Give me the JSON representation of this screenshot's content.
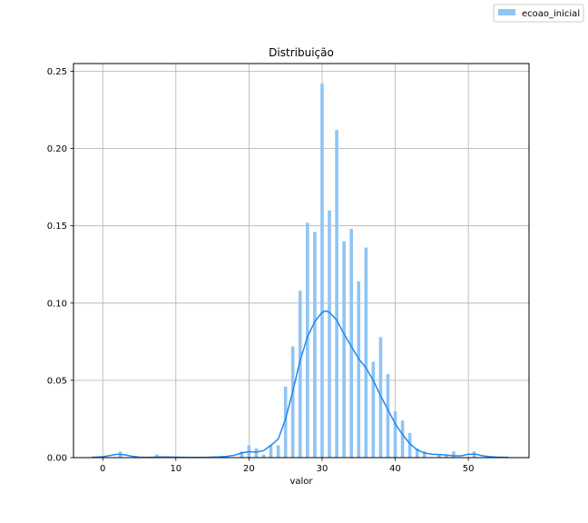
{
  "chart_data": {
    "type": "bar",
    "title": "Distribuição",
    "xlabel": "valor",
    "ylabel": "",
    "xlim": [
      -4,
      58.3
    ],
    "ylim": [
      0,
      0.255
    ],
    "xticks": [
      0,
      10,
      20,
      30,
      40,
      50
    ],
    "yticks": [
      0.0,
      0.05,
      0.1,
      0.15,
      0.2,
      0.25
    ],
    "ytick_labels": [
      "0.00",
      "0.05",
      "0.10",
      "0.15",
      "0.20",
      "0.25"
    ],
    "grid": true,
    "legend": {
      "placement": "top-right-outside",
      "entries": [
        "ecoao_inicial"
      ]
    },
    "bar_color": "#90c4f5",
    "kde_color": "#2188ee",
    "series": [
      {
        "name": "ecoao_inicial",
        "type": "histogram",
        "x": [
          2.4,
          7.4,
          19.0,
          20.0,
          21.0,
          22.0,
          23.0,
          24.0,
          25.0,
          26.0,
          27.0,
          28.0,
          29.0,
          30.0,
          31.0,
          32.0,
          33.0,
          34.0,
          35.0,
          36.0,
          37.0,
          38.0,
          39.0,
          40.0,
          41.0,
          42.0,
          43.0,
          44.0,
          46.0,
          47.0,
          48.0,
          50.8
        ],
        "values": [
          0.004,
          0.002,
          0.004,
          0.008,
          0.006,
          0.002,
          0.008,
          0.008,
          0.046,
          0.072,
          0.108,
          0.152,
          0.146,
          0.242,
          0.16,
          0.212,
          0.14,
          0.148,
          0.114,
          0.136,
          0.062,
          0.078,
          0.054,
          0.03,
          0.024,
          0.016,
          0.006,
          0.004,
          0.002,
          0.002,
          0.004,
          0.004
        ]
      },
      {
        "name": "ecoao_inicial",
        "type": "kde",
        "x": [
          -1.5,
          0,
          1,
          2,
          3,
          4,
          5,
          6,
          8,
          10,
          12,
          14,
          16,
          17,
          18,
          19,
          20,
          21,
          22,
          23,
          24,
          25,
          26,
          27,
          28,
          29,
          30,
          30.5,
          31,
          32,
          33,
          34,
          35,
          36,
          37,
          38,
          39,
          40,
          41,
          42,
          43,
          44,
          45,
          46,
          47,
          48,
          49,
          50,
          51,
          52,
          53,
          54,
          55.5
        ],
        "values": [
          0.0002,
          0.0006,
          0.0014,
          0.0022,
          0.0018,
          0.0009,
          0.0003,
          0.0002,
          0.0004,
          0.0003,
          0.0001,
          0.0002,
          0.0005,
          0.0008,
          0.0015,
          0.003,
          0.0038,
          0.0036,
          0.0045,
          0.008,
          0.012,
          0.025,
          0.043,
          0.063,
          0.078,
          0.088,
          0.094,
          0.095,
          0.094,
          0.089,
          0.08,
          0.072,
          0.064,
          0.058,
          0.05,
          0.04,
          0.031,
          0.022,
          0.015,
          0.009,
          0.005,
          0.003,
          0.0022,
          0.002,
          0.0017,
          0.0012,
          0.0012,
          0.0022,
          0.0022,
          0.0012,
          0.0006,
          0.0003,
          0.0002
        ]
      }
    ]
  }
}
